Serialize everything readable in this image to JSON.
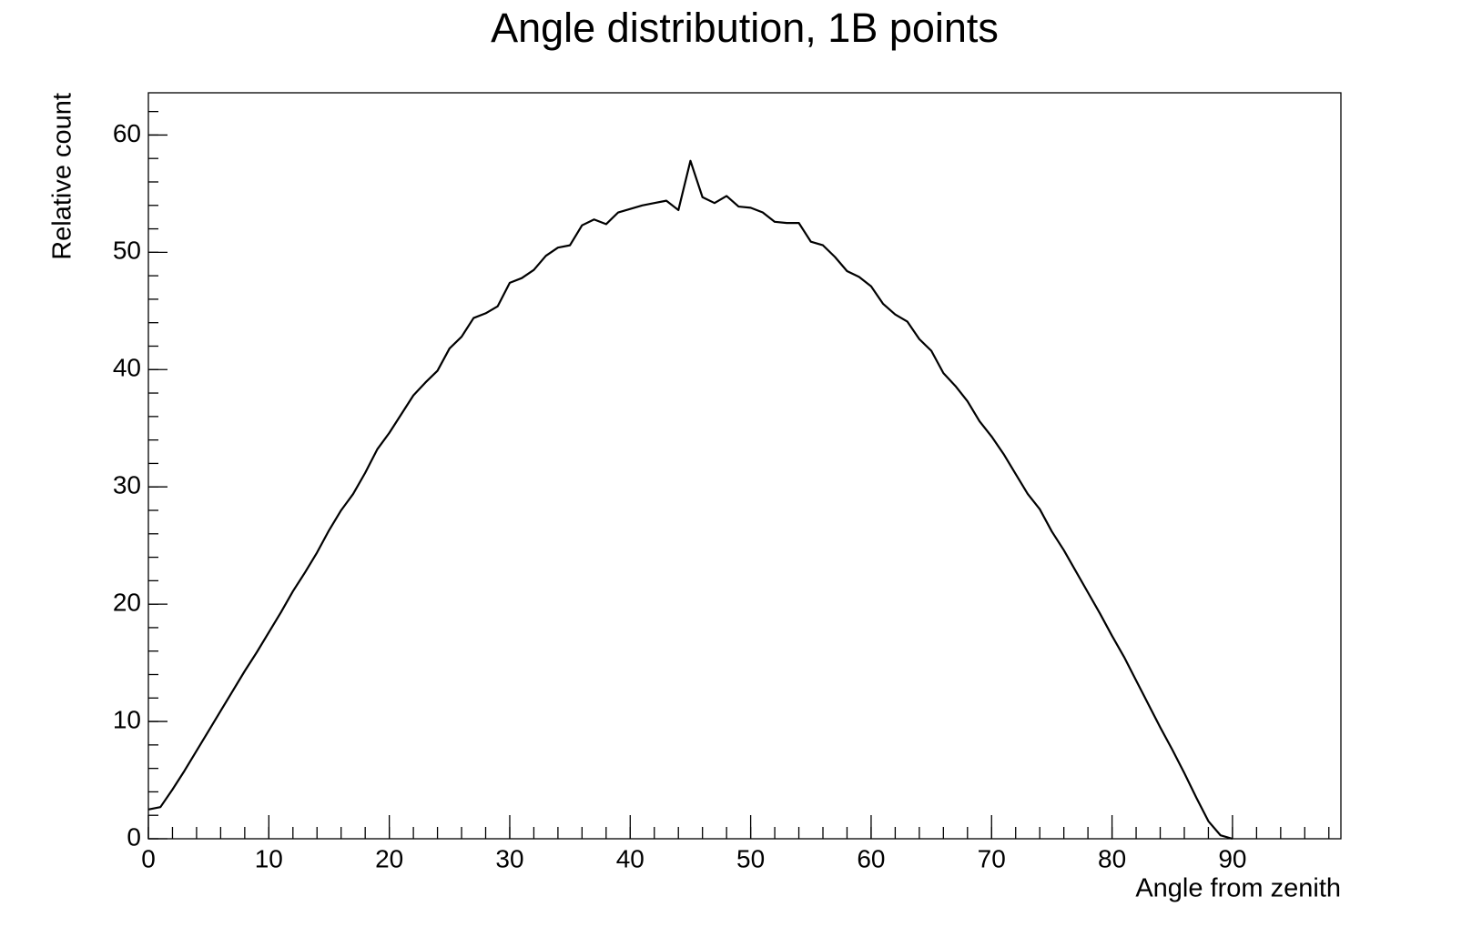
{
  "chart_data": {
    "type": "line",
    "title": "Angle distribution, 1B points",
    "x_label": "Angle from zenith",
    "y_label": "Relative count",
    "x": [
      0,
      1,
      2,
      3,
      4,
      5,
      6,
      7,
      8,
      9,
      10,
      11,
      12,
      13,
      14,
      15,
      16,
      17,
      18,
      19,
      20,
      21,
      22,
      23,
      24,
      25,
      26,
      27,
      28,
      29,
      30,
      31,
      32,
      33,
      34,
      35,
      36,
      37,
      38,
      39,
      40,
      41,
      42,
      43,
      44,
      45,
      46,
      47,
      48,
      49,
      50,
      51,
      52,
      53,
      54,
      55,
      56,
      57,
      58,
      59,
      60,
      61,
      62,
      63,
      64,
      65,
      66,
      67,
      68,
      69,
      70,
      71,
      72,
      73,
      74,
      75,
      76,
      77,
      78,
      79,
      80,
      81,
      82,
      83,
      84,
      85,
      86,
      87,
      88,
      89,
      90
    ],
    "series": [
      {
        "color": "#000000",
        "values": [
          2.5,
          2.7,
          4.2,
          5.8,
          7.5,
          9.2,
          10.9,
          12.6,
          14.3,
          15.9,
          17.6,
          19.3,
          21.1,
          22.7,
          24.4,
          26.3,
          28.0,
          29.4,
          31.2,
          33.2,
          34.6,
          36.2,
          37.8,
          38.9,
          39.9,
          41.8,
          42.8,
          44.4,
          44.8,
          45.4,
          47.4,
          47.8,
          48.5,
          49.7,
          50.4,
          50.6,
          52.3,
          52.8,
          52.4,
          53.4,
          53.7,
          54.0,
          54.2,
          54.4,
          53.6,
          57.8,
          54.7,
          54.2,
          54.8,
          53.9,
          53.8,
          53.4,
          52.6,
          52.5,
          52.5,
          50.9,
          50.6,
          49.6,
          48.4,
          47.9,
          47.1,
          45.6,
          44.7,
          44.1,
          42.6,
          41.6,
          39.7,
          38.6,
          37.3,
          35.6,
          34.3,
          32.8,
          31.1,
          29.4,
          28.1,
          26.2,
          24.6,
          22.8,
          21.0,
          19.2,
          17.3,
          15.5,
          13.5,
          11.5,
          9.5,
          7.6,
          5.6,
          3.5,
          1.5,
          0.3,
          0
        ]
      }
    ],
    "xlim": [
      0,
      99
    ],
    "xticks": [
      0,
      10,
      20,
      30,
      40,
      50,
      60,
      70,
      80,
      90
    ],
    "ylim": [
      0,
      63.6
    ],
    "yticks": [
      0,
      10,
      20,
      30,
      40,
      50,
      60
    ]
  }
}
